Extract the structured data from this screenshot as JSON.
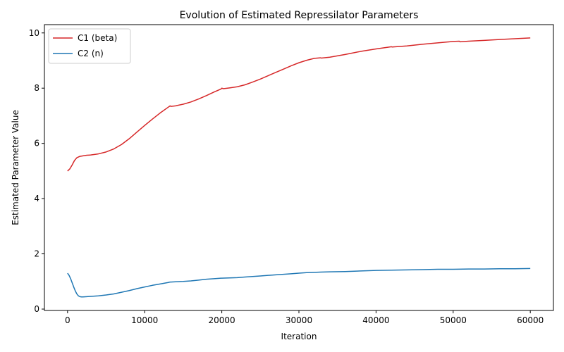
{
  "chart_data": {
    "type": "line",
    "title": "Evolution of Estimated Repressilator Parameters",
    "xlabel": "Iteration",
    "ylabel": "Estimated Parameter Value",
    "xlim": [
      -3000,
      63000
    ],
    "ylim": [
      -0.05,
      10.3
    ],
    "xticks": [
      0,
      10000,
      20000,
      30000,
      40000,
      50000,
      60000
    ],
    "xtick_labels": [
      "0",
      "10000",
      "20000",
      "30000",
      "40000",
      "50000",
      "60000"
    ],
    "yticks": [
      0,
      2,
      4,
      6,
      8,
      10
    ],
    "ytick_labels": [
      "0",
      "2",
      "4",
      "6",
      "8",
      "10"
    ],
    "grid": false,
    "legend_position": "top-left",
    "series": [
      {
        "name": "C1 (beta)",
        "color": "#d62728",
        "x": [
          0,
          300,
          600,
          900,
          1200,
          1600,
          2000,
          2500,
          3000,
          4000,
          5000,
          6000,
          7000,
          8000,
          9000,
          10000,
          11000,
          12000,
          13000,
          13300,
          13400,
          14000,
          15000,
          16000,
          17000,
          18000,
          19000,
          19900,
          20000,
          20200,
          21000,
          22000,
          23000,
          24000,
          25000,
          26000,
          27000,
          28000,
          29000,
          30000,
          31000,
          32000,
          32800,
          32900,
          34000,
          36000,
          38000,
          40000,
          42000,
          42100,
          44000,
          46000,
          48000,
          50000,
          50800,
          50900,
          52000,
          54000,
          56000,
          58000,
          60000
        ],
        "values": [
          5.0,
          5.08,
          5.22,
          5.38,
          5.48,
          5.53,
          5.55,
          5.57,
          5.58,
          5.62,
          5.69,
          5.8,
          5.96,
          6.17,
          6.41,
          6.65,
          6.88,
          7.1,
          7.3,
          7.36,
          7.34,
          7.36,
          7.42,
          7.5,
          7.61,
          7.73,
          7.86,
          7.97,
          8.0,
          7.98,
          8.01,
          8.05,
          8.12,
          8.22,
          8.33,
          8.45,
          8.57,
          8.69,
          8.81,
          8.92,
          9.01,
          9.08,
          9.1,
          9.09,
          9.12,
          9.22,
          9.33,
          9.42,
          9.5,
          9.49,
          9.53,
          9.59,
          9.64,
          9.69,
          9.7,
          9.68,
          9.7,
          9.73,
          9.76,
          9.79,
          9.82
        ]
      },
      {
        "name": "C2 (n)",
        "color": "#1f77b4",
        "x": [
          0,
          200,
          400,
          600,
          800,
          1000,
          1200,
          1400,
          1600,
          1800,
          2000,
          2500,
          3000,
          4000,
          5000,
          6000,
          7000,
          8000,
          9000,
          10000,
          11000,
          12000,
          13000,
          13300,
          13400,
          14000,
          15000,
          16000,
          17000,
          18000,
          19000,
          19900,
          20000,
          21000,
          22000,
          23000,
          24000,
          25000,
          26000,
          27000,
          28000,
          29000,
          30000,
          31000,
          32000,
          32800,
          34000,
          36000,
          38000,
          40000,
          42000,
          44000,
          46000,
          48000,
          50000,
          52000,
          54000,
          56000,
          58000,
          60000
        ],
        "values": [
          1.3,
          1.22,
          1.1,
          0.95,
          0.8,
          0.66,
          0.55,
          0.48,
          0.45,
          0.44,
          0.44,
          0.45,
          0.46,
          0.48,
          0.51,
          0.55,
          0.61,
          0.67,
          0.74,
          0.8,
          0.86,
          0.91,
          0.96,
          0.98,
          0.98,
          0.99,
          1.0,
          1.02,
          1.05,
          1.08,
          1.1,
          1.12,
          1.12,
          1.13,
          1.14,
          1.16,
          1.18,
          1.2,
          1.22,
          1.24,
          1.26,
          1.28,
          1.3,
          1.32,
          1.33,
          1.34,
          1.35,
          1.36,
          1.38,
          1.4,
          1.41,
          1.42,
          1.43,
          1.44,
          1.44,
          1.45,
          1.45,
          1.46,
          1.46,
          1.47
        ]
      }
    ]
  }
}
